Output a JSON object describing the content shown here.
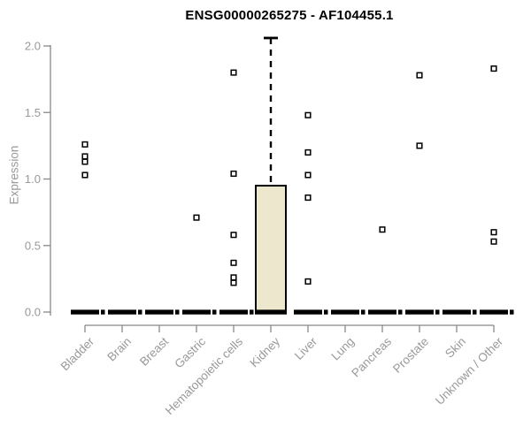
{
  "chart_data": {
    "type": "boxplot",
    "title": "ENSG00000265275 - AF104455.1",
    "ylabel": "Expression",
    "xlabel": "",
    "ylim": [
      0,
      2.1
    ],
    "yticks": [
      0,
      0.5,
      1,
      1.5,
      2
    ],
    "ytick_labels": [
      "0.0",
      "0.5",
      "1.0",
      "1.5",
      "2.0"
    ],
    "grid": false,
    "legend": false,
    "colors": {
      "box_fill": "#ECE7CD",
      "box_stroke": "#000000",
      "axis_line": "#888888",
      "tick_text": "#999999",
      "title_text": "#000000",
      "outlier_fill": "#ffffff"
    },
    "categories": [
      "Bladder",
      "Brain",
      "Breast",
      "Gastric",
      "Hematopoietic cells",
      "Kidney",
      "Liver",
      "Lung",
      "Pancreas",
      "Prostate",
      "Skin",
      "Unknown / Other"
    ],
    "boxes": [
      {
        "category": "Bladder",
        "whisker_low": 0,
        "q1": 0,
        "median": 0,
        "q3": 0,
        "whisker_high": 0,
        "outliers": [
          1.26,
          1.17,
          1.13,
          1.03
        ]
      },
      {
        "category": "Brain",
        "whisker_low": 0,
        "q1": 0,
        "median": 0,
        "q3": 0,
        "whisker_high": 0,
        "outliers": []
      },
      {
        "category": "Breast",
        "whisker_low": 0,
        "q1": 0,
        "median": 0,
        "q3": 0,
        "whisker_high": 0,
        "outliers": []
      },
      {
        "category": "Gastric",
        "whisker_low": 0,
        "q1": 0,
        "median": 0,
        "q3": 0,
        "whisker_high": 0,
        "outliers": [
          0.71
        ]
      },
      {
        "category": "Hematopoietic cells",
        "whisker_low": 0,
        "q1": 0,
        "median": 0,
        "q3": 0,
        "whisker_high": 0,
        "outliers": [
          1.8,
          1.04,
          0.58,
          0.37,
          0.26,
          0.22
        ]
      },
      {
        "category": "Kidney",
        "whisker_low": 0,
        "q1": 0,
        "median": 0,
        "q3": 0.95,
        "whisker_high": 2.06,
        "outliers": []
      },
      {
        "category": "Liver",
        "whisker_low": 0,
        "q1": 0,
        "median": 0,
        "q3": 0,
        "whisker_high": 0,
        "outliers": [
          1.48,
          1.2,
          1.03,
          0.86,
          0.23
        ]
      },
      {
        "category": "Lung",
        "whisker_low": 0,
        "q1": 0,
        "median": 0,
        "q3": 0,
        "whisker_high": 0,
        "outliers": []
      },
      {
        "category": "Pancreas",
        "whisker_low": 0,
        "q1": 0,
        "median": 0,
        "q3": 0,
        "whisker_high": 0,
        "outliers": [
          0.62
        ]
      },
      {
        "category": "Prostate",
        "whisker_low": 0,
        "q1": 0,
        "median": 0,
        "q3": 0,
        "whisker_high": 0,
        "outliers": [
          1.78,
          1.25
        ]
      },
      {
        "category": "Skin",
        "whisker_low": 0,
        "q1": 0,
        "median": 0,
        "q3": 0,
        "whisker_high": 0,
        "outliers": []
      },
      {
        "category": "Unknown / Other",
        "whisker_low": 0,
        "q1": 0,
        "median": 0,
        "q3": 0,
        "whisker_high": 0,
        "outliers": [
          1.83,
          0.6,
          0.53
        ]
      }
    ]
  }
}
